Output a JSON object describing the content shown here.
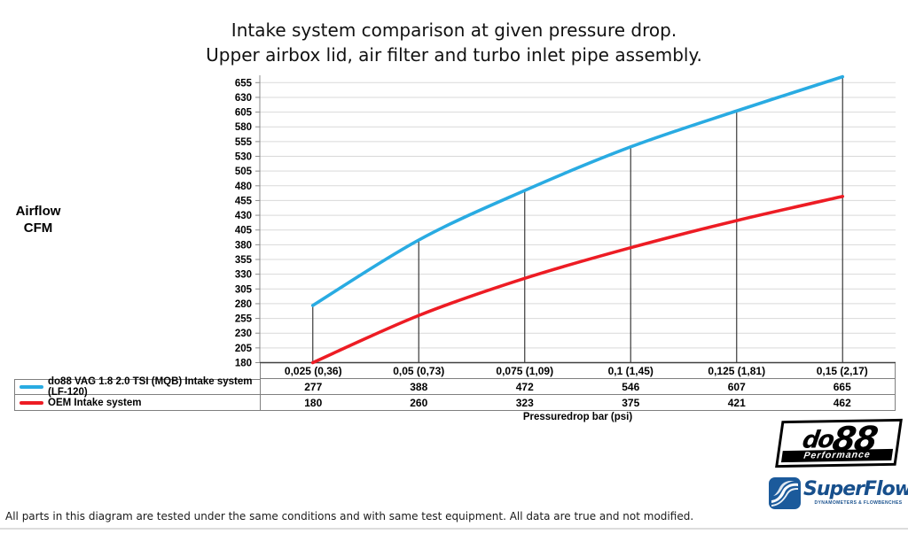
{
  "header": {
    "title_line1": "Intake system comparison at given pressure drop.",
    "title_line2": "Upper airbox lid, air filter and turbo inlet pipe assembly."
  },
  "chart_data": {
    "type": "line",
    "title": "Intake system comparison at given pressure drop. Upper airbox lid, air filter and turbo inlet pipe assembly.",
    "xlabel": "Pressuredrop bar (psi)",
    "ylabel": "Airflow CFM",
    "ylabel_lines": [
      "Airflow",
      "CFM"
    ],
    "ylim": [
      180,
      655
    ],
    "ytick_step": 25,
    "grid": true,
    "legend_position": "table-left",
    "smoothed_lines": true,
    "drop_lines": true,
    "categories": [
      "0,025 (0,36)",
      "0,05 (0,73)",
      "0,075 (1,09)",
      "0,1 (1,45)",
      "0,125 (1,81)",
      "0,15 (2,17)"
    ],
    "series": [
      {
        "name": "do88 VAG 1.8 2.0 TSI (MQB) Intake system (LF-120)",
        "color": "#29ABE2",
        "values": [
          277,
          388,
          472,
          546,
          607,
          665
        ]
      },
      {
        "name": "OEM Intake system",
        "color": "#ED1C24",
        "values": [
          180,
          260,
          323,
          375,
          421,
          462
        ]
      }
    ]
  },
  "footer": {
    "disclaimer": "All parts in this diagram are tested under the same conditions and with same test equipment. All data are true and not modified."
  },
  "logos": {
    "do88": {
      "name_part1": "do",
      "name_part2": "88",
      "tagline": "Performance"
    },
    "superflow": {
      "name": "SuperFlow",
      "tagline": "DYNAMOMETERS & FLOWBENCHES"
    }
  },
  "colors": {
    "do88_line": "#29ABE2",
    "oem_line": "#ED1C24",
    "gridline": "#D9D9D9",
    "axis": "#8C8C8C",
    "axis_baseline": "#404040",
    "dropline": "#3A3A3A",
    "table_border": "#7F7F7F",
    "superflow_blue": "#174F8C",
    "logo_black": "#000000"
  }
}
